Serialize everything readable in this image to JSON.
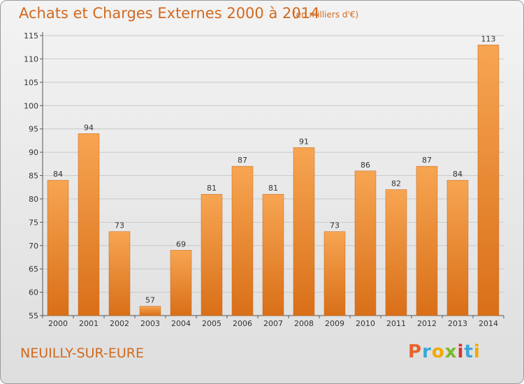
{
  "header": {
    "title": "Achats et Charges Externes 2000 à 2014",
    "subtitle": "(en milliers d'€)"
  },
  "footer": {
    "commune": "NEUILLY-SUR-EURE",
    "logo_text": "Proxiti",
    "logo_colors": [
      "#e8632b",
      "#3aa7d9",
      "#f2a900",
      "#7ab929",
      "#d9302c",
      "#3aa7d9",
      "#f2a900"
    ]
  },
  "chart_data": {
    "type": "bar",
    "title": "Achats et Charges Externes 2000 à 2014",
    "subtitle": "(en milliers d'€)",
    "xlabel": "",
    "ylabel": "",
    "categories": [
      "2000",
      "2001",
      "2002",
      "2003",
      "2004",
      "2005",
      "2006",
      "2007",
      "2008",
      "2009",
      "2010",
      "2011",
      "2012",
      "2013",
      "2014"
    ],
    "values": [
      84,
      94,
      73,
      57,
      69,
      81,
      87,
      81,
      91,
      73,
      86,
      82,
      87,
      84,
      113
    ],
    "ylim": [
      55,
      115
    ],
    "yticks": [
      55,
      60,
      65,
      70,
      75,
      80,
      85,
      90,
      95,
      100,
      105,
      110,
      115
    ],
    "grid": true,
    "legend": "none",
    "bar_color_top": "#f7a552",
    "bar_color_bottom": "#d96f18"
  }
}
